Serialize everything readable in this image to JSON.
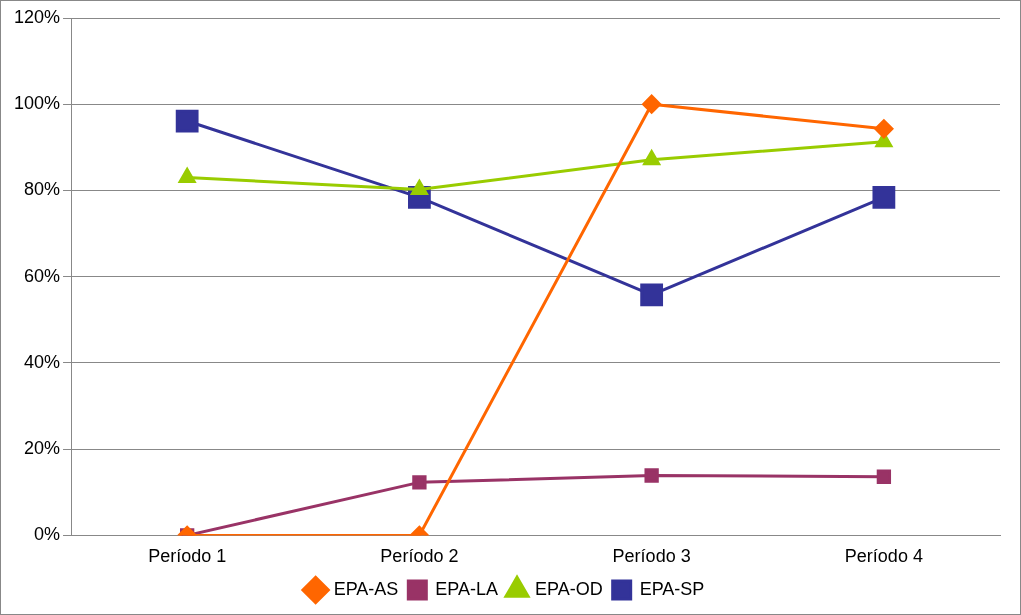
{
  "chart_data": {
    "type": "line",
    "categories": [
      "Período 1",
      "Período 2",
      "Período 3",
      "Período 4"
    ],
    "series": [
      {
        "name": "EPA-AS",
        "color": "#ff6600",
        "marker": "diamond",
        "values": [
          0,
          0,
          100,
          94.3
        ]
      },
      {
        "name": "EPA-LA",
        "color": "#993366",
        "marker": "square",
        "values": [
          0,
          12.3,
          13.9,
          13.6
        ]
      },
      {
        "name": "EPA-OD",
        "color": "#99cc00",
        "marker": "triangle",
        "values": [
          83,
          80.2,
          87.1,
          91.3
        ]
      },
      {
        "name": "EPA-SP",
        "color": "#333399",
        "marker": "square",
        "values": [
          96.1,
          78.4,
          55.8,
          78.4
        ]
      }
    ],
    "ylim": [
      0,
      120
    ],
    "yticks": [
      {
        "value": 0,
        "label": "0%"
      },
      {
        "value": 20,
        "label": "20%"
      },
      {
        "value": 40,
        "label": "40%"
      },
      {
        "value": 60,
        "label": "60%"
      },
      {
        "value": 80,
        "label": "80%"
      },
      {
        "value": 100,
        "label": "100%"
      },
      {
        "value": 120,
        "label": "120%"
      }
    ],
    "grid": "y",
    "legend": "bottom"
  }
}
